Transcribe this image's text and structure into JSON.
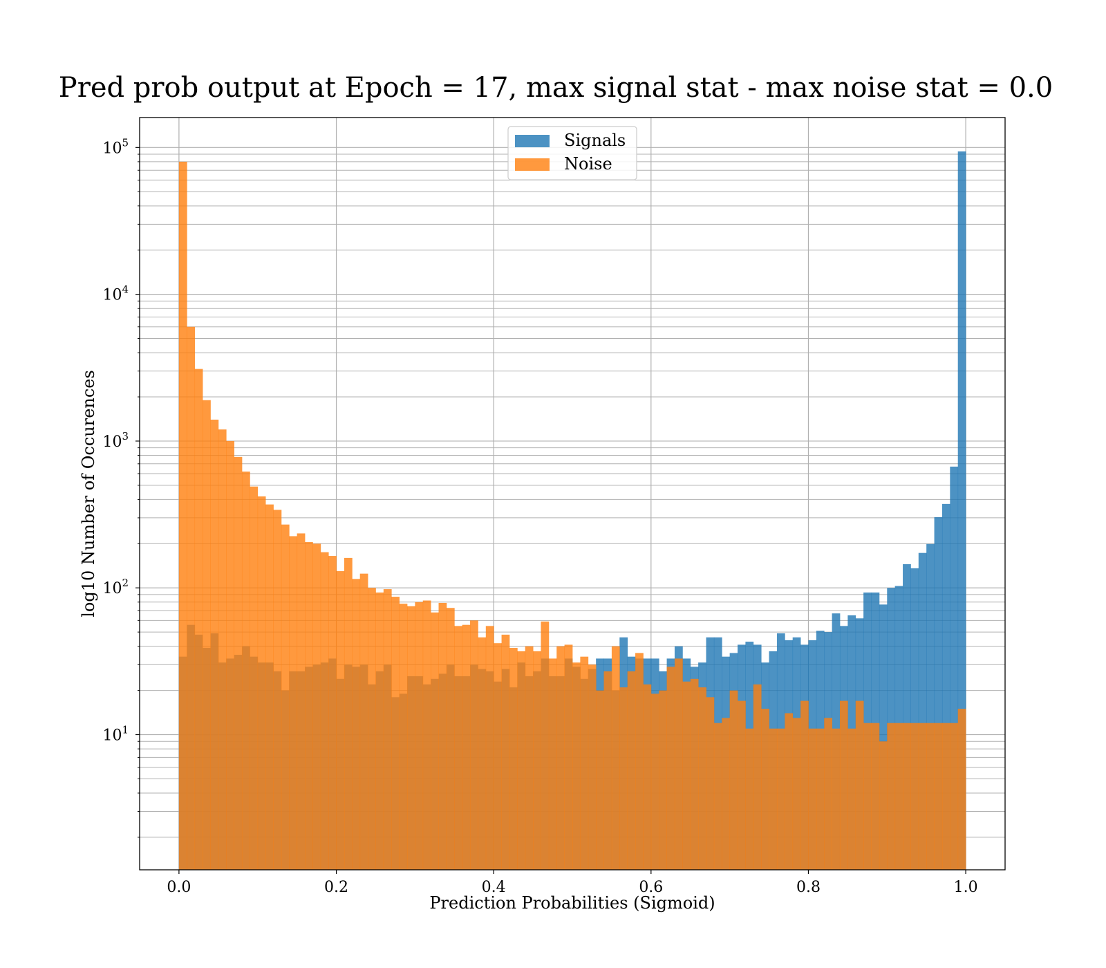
{
  "chart_data": {
    "type": "bar",
    "title": "Pred prob output at Epoch = 17, max signal stat - max noise stat = 0.0",
    "xlabel": "Prediction Probabilities (Sigmoid)",
    "ylabel": "log10 Number of Occurences",
    "xlim": [
      -0.05,
      1.05
    ],
    "ylim": [
      1.2,
      160000
    ],
    "yscale": "log",
    "grid": true,
    "legend_position": "top-center",
    "bins": 100,
    "bin_range": [
      0,
      1
    ],
    "x_ticks": [
      "0.0",
      "0.2",
      "0.4",
      "0.6",
      "0.8",
      "1.0"
    ],
    "y_ticks": [
      {
        "base": "10",
        "exp": "1"
      },
      {
        "base": "10",
        "exp": "2"
      },
      {
        "base": "10",
        "exp": "3"
      },
      {
        "base": "10",
        "exp": "4"
      },
      {
        "base": "10",
        "exp": "5"
      }
    ],
    "colors": {
      "signals": "#1f77b4",
      "noise": "#ff7f0e"
    },
    "series": [
      {
        "name": "Signals",
        "color": "#1f77b4",
        "values": [
          34,
          56,
          48,
          39,
          49,
          31,
          33,
          35,
          40,
          34,
          31,
          31,
          27,
          20,
          27,
          27,
          29,
          30,
          31,
          33,
          24,
          30,
          29,
          30,
          22,
          27,
          30,
          18,
          19,
          25,
          25,
          22,
          24,
          26,
          30,
          25,
          25,
          30,
          28,
          27,
          23,
          28,
          21,
          31,
          25,
          27,
          33,
          25,
          25,
          33,
          29,
          24,
          28,
          33,
          33,
          20,
          46,
          34,
          33,
          33,
          33,
          27,
          33,
          40,
          33,
          29,
          31,
          46,
          46,
          34,
          36,
          41,
          43,
          41,
          31,
          37,
          49,
          44,
          46,
          41,
          44,
          51,
          50,
          67,
          55,
          65,
          62,
          93,
          93,
          77,
          100,
          103,
          145,
          136,
          173,
          199,
          303,
          373,
          670,
          94000
        ]
      },
      {
        "name": "Noise",
        "color": "#ff7f0e",
        "values": [
          80000,
          6000,
          3100,
          1900,
          1400,
          1200,
          1000,
          780,
          620,
          490,
          420,
          370,
          340,
          270,
          225,
          235,
          205,
          200,
          175,
          165,
          130,
          160,
          115,
          125,
          100,
          93,
          98,
          87,
          78,
          75,
          80,
          82,
          68,
          79,
          73,
          55,
          56,
          60,
          46,
          55,
          42,
          48,
          39,
          37,
          40,
          37,
          59,
          33,
          40,
          41,
          31,
          34,
          30,
          20,
          27,
          40,
          21,
          27,
          36,
          22,
          19,
          20,
          29,
          33,
          23,
          24,
          21,
          18,
          12,
          13,
          20,
          17,
          11,
          22,
          15,
          11,
          11,
          14,
          13,
          17,
          11,
          11,
          13,
          11,
          17,
          11,
          17,
          12,
          12,
          9,
          12,
          12,
          12,
          12,
          12,
          12,
          12,
          12,
          12,
          15
        ]
      }
    ]
  }
}
